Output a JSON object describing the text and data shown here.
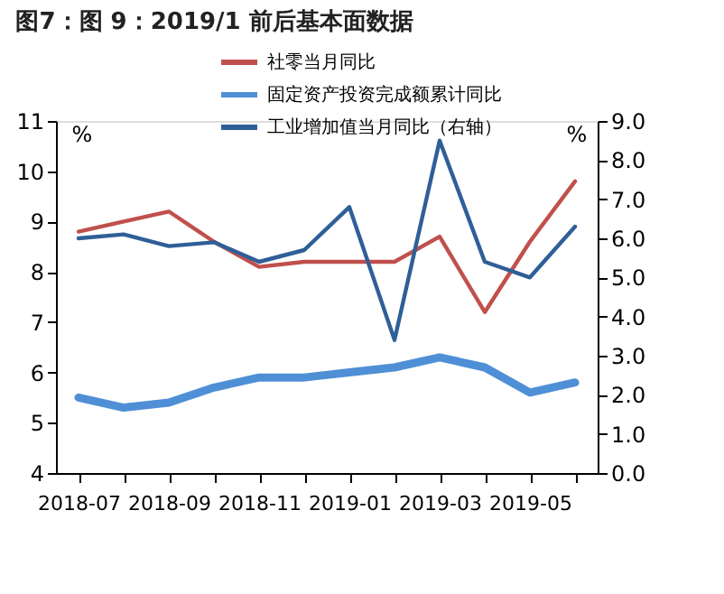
{
  "chart_data": {
    "type": "line",
    "title": "图7：图 9：2019/1 前后基本面数据",
    "categories": [
      "2018-07",
      null,
      "2018-09",
      null,
      "2018-11",
      null,
      "2019-01",
      null,
      "2019-03",
      null,
      "2019-05",
      null
    ],
    "series": [
      {
        "name": "社零当月同比",
        "color": "#c0504d",
        "values": [
          8.8,
          9.0,
          9.2,
          8.6,
          8.1,
          8.2,
          8.2,
          8.2,
          8.7,
          7.2,
          8.6,
          9.8
        ]
      },
      {
        "name": "固定资产投资完成额累计同比",
        "color": "#4f8fd6",
        "values": [
          5.5,
          5.3,
          5.4,
          5.7,
          5.9,
          5.9,
          6.0,
          6.1,
          6.3,
          6.1,
          5.6,
          5.8
        ]
      },
      {
        "name": "工业增加值当月同比（右轴）",
        "color": "#2f5f98",
        "axis": "y2",
        "values": [
          6.0,
          6.1,
          5.8,
          5.9,
          5.4,
          5.7,
          6.8,
          3.4,
          8.5,
          5.4,
          5.0,
          6.3
        ]
      }
    ],
    "ylabel": "%",
    "y2label": "%",
    "ylim": [
      4,
      11
    ],
    "yticks": [
      4,
      5,
      6,
      7,
      8,
      9,
      10,
      11
    ],
    "y2lim": [
      0,
      9
    ],
    "y2ticks": [
      {
        "value": 0,
        "label": "0.0"
      },
      {
        "value": 1,
        "label": "1.0"
      },
      {
        "value": 2,
        "label": "2.0"
      },
      {
        "value": 3,
        "label": "3.0"
      },
      {
        "value": 4,
        "label": "4.0"
      },
      {
        "value": 5,
        "label": "5.0"
      },
      {
        "value": 6,
        "label": "6.0"
      },
      {
        "value": 7,
        "label": "7.0"
      },
      {
        "value": 8,
        "label": "8.0"
      },
      {
        "value": 9,
        "label": "9.0"
      }
    ],
    "grid": false,
    "legend": "top",
    "marker": "none",
    "line_style": "solid"
  }
}
